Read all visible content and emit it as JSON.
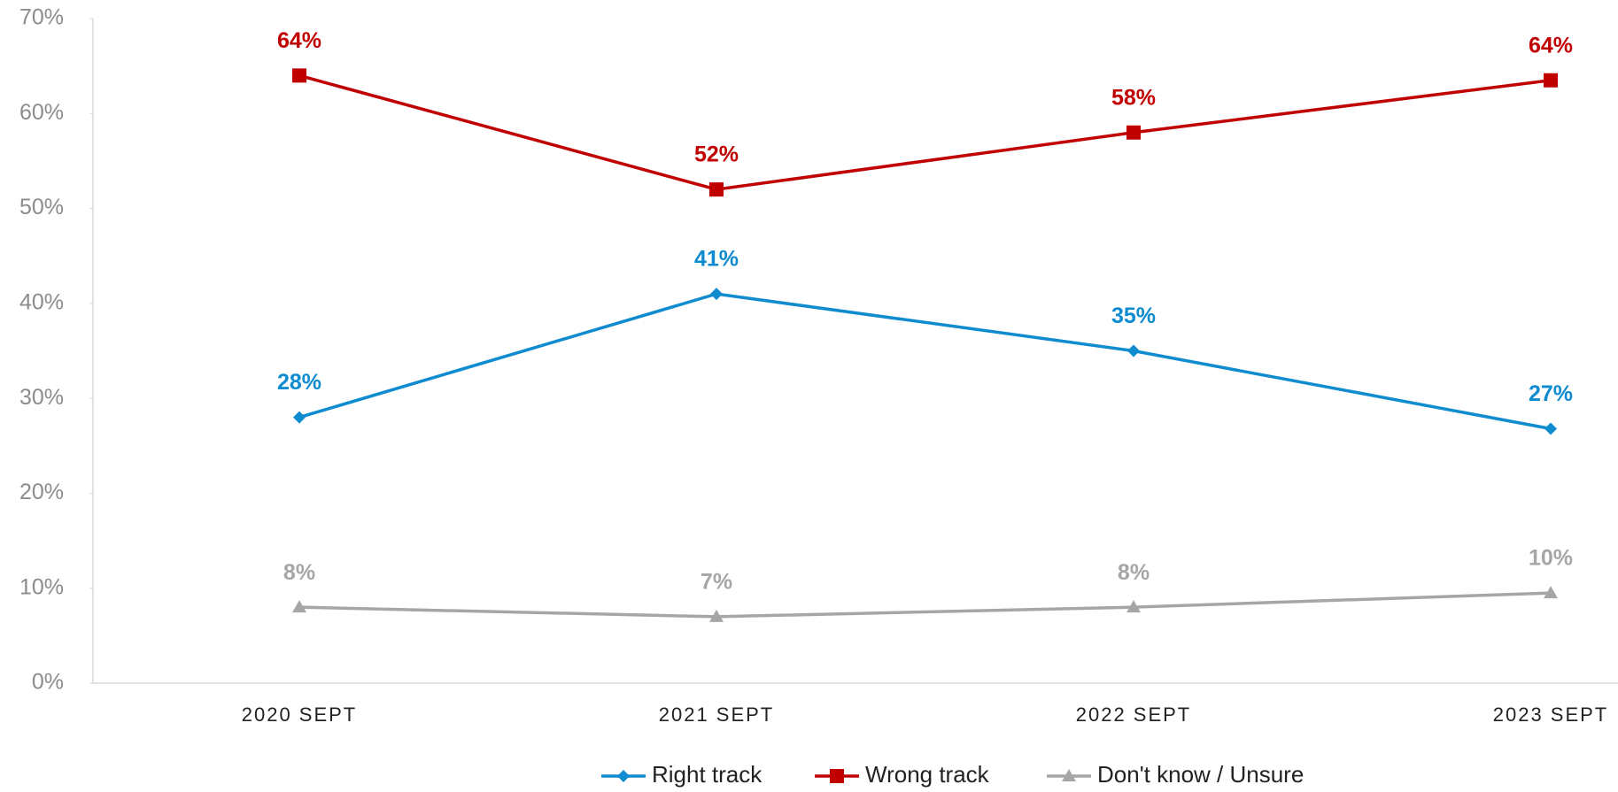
{
  "chart_data": {
    "type": "line",
    "categories": [
      "2020 SEPT",
      "2021 SEPT",
      "2022 SEPT",
      "2023 SEPT"
    ],
    "series": [
      {
        "name": "Right track",
        "color": "#0f8bcf",
        "marker": "diamond",
        "values": [
          28,
          41,
          35,
          26.8
        ],
        "value_labels": [
          "28%",
          "41%",
          "35%",
          "27%"
        ]
      },
      {
        "name": "Wrong track",
        "color": "#c00000",
        "marker": "square",
        "values": [
          64,
          52,
          58,
          63.5
        ],
        "value_labels": [
          "64%",
          "52%",
          "58%",
          "64%"
        ]
      },
      {
        "name": "Don't know / Unsure",
        "color": "#a6a6a6",
        "marker": "triangle",
        "values": [
          8,
          7,
          8,
          9.5
        ],
        "value_labels": [
          "8%",
          "7%",
          "8%",
          "10%"
        ]
      }
    ],
    "ylim": [
      0,
      70
    ],
    "yticks": [
      {
        "value": 0,
        "label": "0%"
      },
      {
        "value": 10,
        "label": "10%"
      },
      {
        "value": 20,
        "label": "20%"
      },
      {
        "value": 30,
        "label": "30%"
      },
      {
        "value": 40,
        "label": "40%"
      },
      {
        "value": 50,
        "label": "50%"
      },
      {
        "value": 60,
        "label": "60%"
      },
      {
        "value": 70,
        "label": "70%"
      }
    ],
    "grid": false,
    "legend": "bottom"
  }
}
